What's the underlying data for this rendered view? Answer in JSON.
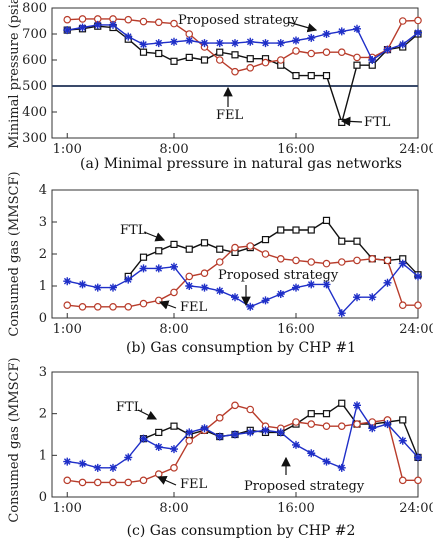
{
  "chart_data": [
    {
      "type": "line",
      "caption": "(a) Minimal pressure in natural gas networks",
      "ylabel": "Minimal pressure (psia)",
      "ylim": [
        300,
        800
      ],
      "yticks": [
        300,
        400,
        500,
        600,
        700,
        800
      ],
      "xlim": [
        0,
        24
      ],
      "xticks": [
        1,
        8,
        16,
        24
      ],
      "xticklabels": [
        "1:00",
        "8:00",
        "16:00",
        "24:00"
      ],
      "reference_line": 500,
      "x": [
        1,
        2,
        3,
        4,
        5,
        6,
        7,
        8,
        9,
        10,
        11,
        12,
        13,
        14,
        15,
        16,
        17,
        18,
        19,
        20,
        21,
        22,
        23,
        24
      ],
      "series": [
        {
          "name": "FTL",
          "marker": "square",
          "color": "#111111",
          "values": [
            715,
            720,
            730,
            725,
            680,
            630,
            625,
            595,
            610,
            600,
            630,
            620,
            605,
            605,
            580,
            540,
            540,
            540,
            360,
            580,
            580,
            640,
            650,
            700
          ]
        },
        {
          "name": "FEL",
          "marker": "circle",
          "color": "#b83c2b",
          "values": [
            755,
            758,
            758,
            758,
            755,
            748,
            745,
            740,
            700,
            650,
            600,
            555,
            570,
            590,
            600,
            635,
            625,
            630,
            630,
            610,
            610,
            640,
            750,
            752
          ]
        },
        {
          "name": "Proposed strategy",
          "marker": "star",
          "color": "#1f2fc8",
          "values": [
            715,
            725,
            735,
            735,
            690,
            660,
            665,
            670,
            675,
            665,
            665,
            665,
            670,
            665,
            665,
            675,
            685,
            700,
            710,
            720,
            600,
            640,
            660,
            705
          ]
        }
      ],
      "annotations": [
        {
          "text": "Proposed strategy",
          "x": 18.7,
          "y": 728
        },
        {
          "text": "FEL",
          "x": 12,
          "y": 560
        },
        {
          "text": "FTL",
          "x": 19,
          "y": 360
        }
      ]
    },
    {
      "type": "line",
      "caption": "(b) Gas consumption by CHP #1",
      "ylabel": "Consumed gas (MMSCF)",
      "ylim": [
        0,
        4
      ],
      "yticks": [
        0,
        1,
        2,
        3,
        4
      ],
      "xlim": [
        0,
        24
      ],
      "xticks": [
        1,
        8,
        16,
        24
      ],
      "xticklabels": [
        "1:00",
        "8:00",
        "16:00",
        "24:00"
      ],
      "x": [
        1,
        2,
        3,
        4,
        5,
        6,
        7,
        8,
        9,
        10,
        11,
        12,
        13,
        14,
        15,
        16,
        17,
        18,
        19,
        20,
        21,
        22,
        23,
        24
      ],
      "series": [
        {
          "name": "FTL",
          "marker": "square",
          "color": "#111111",
          "values": [
            null,
            null,
            null,
            null,
            1.3,
            1.9,
            2.1,
            2.3,
            2.15,
            2.35,
            2.15,
            2.05,
            2.2,
            2.45,
            2.75,
            2.75,
            2.75,
            3.05,
            2.4,
            2.4,
            1.85,
            1.8,
            1.85,
            1.35
          ]
        },
        {
          "name": "FEL",
          "marker": "circle",
          "color": "#b83c2b",
          "values": [
            0.4,
            0.35,
            0.35,
            0.35,
            0.35,
            0.45,
            0.55,
            0.8,
            1.3,
            1.4,
            1.75,
            2.2,
            2.25,
            2.0,
            1.85,
            1.8,
            1.75,
            1.7,
            1.75,
            1.8,
            1.85,
            1.8,
            0.4,
            0.4
          ]
        },
        {
          "name": "Proposed strategy",
          "marker": "star",
          "color": "#1f2fc8",
          "values": [
            1.15,
            1.05,
            0.95,
            0.95,
            1.2,
            1.55,
            1.55,
            1.6,
            1.0,
            0.95,
            0.85,
            0.65,
            0.35,
            0.55,
            0.75,
            0.95,
            1.05,
            1.05,
            0.15,
            0.65,
            0.65,
            1.1,
            1.7,
            1.3
          ]
        }
      ],
      "annotations": [
        {
          "text": "FTL",
          "x": 7.5,
          "y": 2.3
        },
        {
          "text": "Proposed strategy",
          "x": 13,
          "y": 0.3
        },
        {
          "text": "FEL",
          "x": 8,
          "y": 0.55
        }
      ]
    },
    {
      "type": "line",
      "caption": "(c) Gas consumption by CHP #2",
      "ylabel": "Consumed gas (MMSCF)",
      "ylim": [
        0,
        3
      ],
      "yticks": [
        0,
        1,
        2,
        3
      ],
      "xlim": [
        0,
        24
      ],
      "xticks": [
        1,
        8,
        16,
        24
      ],
      "xticklabels": [
        "1:00",
        "8:00",
        "16:00",
        "24:00"
      ],
      "x": [
        1,
        2,
        3,
        4,
        5,
        6,
        7,
        8,
        9,
        10,
        11,
        12,
        13,
        14,
        15,
        16,
        17,
        18,
        19,
        20,
        21,
        22,
        23,
        24
      ],
      "series": [
        {
          "name": "FTL",
          "marker": "square",
          "color": "#111111",
          "values": [
            null,
            null,
            null,
            null,
            null,
            1.4,
            1.55,
            1.7,
            1.5,
            1.6,
            1.45,
            1.5,
            1.6,
            1.55,
            1.55,
            1.75,
            2.0,
            2.0,
            2.25,
            1.75,
            1.75,
            1.8,
            1.85,
            0.95
          ]
        },
        {
          "name": "FEL",
          "marker": "circle",
          "color": "#b83c2b",
          "values": [
            0.4,
            0.35,
            0.35,
            0.35,
            0.35,
            0.4,
            0.55,
            0.7,
            1.35,
            1.6,
            1.9,
            2.2,
            2.1,
            1.7,
            1.65,
            1.8,
            1.75,
            1.7,
            1.7,
            1.75,
            1.8,
            1.85,
            0.4,
            0.4
          ]
        },
        {
          "name": "Proposed strategy",
          "marker": "star",
          "color": "#1f2fc8",
          "values": [
            0.85,
            0.8,
            0.7,
            0.7,
            0.95,
            1.4,
            1.2,
            1.15,
            1.55,
            1.65,
            1.45,
            1.5,
            1.55,
            1.6,
            1.55,
            1.25,
            1.05,
            0.85,
            0.7,
            2.2,
            1.65,
            1.75,
            1.35,
            0.95
          ]
        }
      ],
      "annotations": [
        {
          "text": "FTL",
          "x": 7,
          "y": 1.7
        },
        {
          "text": "FEL",
          "x": 7.5,
          "y": 0.6
        },
        {
          "text": "Proposed strategy",
          "x": 16.5,
          "y": 1.0
        }
      ]
    }
  ]
}
